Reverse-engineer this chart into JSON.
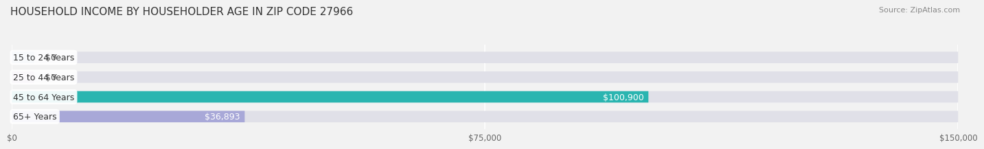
{
  "title": "HOUSEHOLD INCOME BY HOUSEHOLDER AGE IN ZIP CODE 27966",
  "source": "Source: ZipAtlas.com",
  "categories": [
    "15 to 24 Years",
    "25 to 44 Years",
    "45 to 64 Years",
    "65+ Years"
  ],
  "values": [
    0,
    0,
    100900,
    36893
  ],
  "bar_colors": [
    "#a8c4e0",
    "#c4a8d0",
    "#2ab5b0",
    "#a8a8d8"
  ],
  "label_colors": [
    "#555555",
    "#555555",
    "#ffffff",
    "#555555"
  ],
  "x_max": 150000,
  "x_ticks": [
    0,
    75000,
    150000
  ],
  "x_tick_labels": [
    "$0",
    "$75,000",
    "$150,000"
  ],
  "value_labels": [
    "$0",
    "$0",
    "$100,900",
    "$36,893"
  ],
  "bg_color": "#f2f2f2",
  "bar_bg_color": "#e0e0e8",
  "title_fontsize": 11,
  "source_fontsize": 8,
  "bar_height": 0.58,
  "label_fontsize": 9
}
